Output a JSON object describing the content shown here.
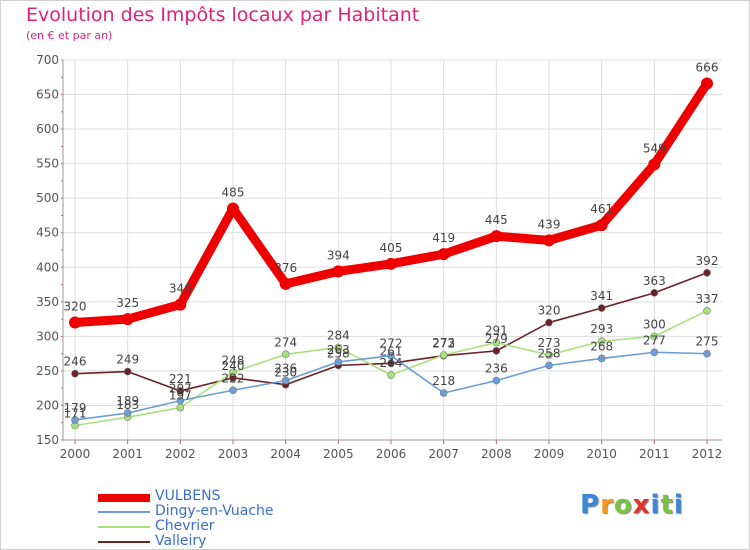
{
  "chart_data": {
    "type": "line",
    "title": "Evolution des Impôts locaux par Habitant",
    "subtitle": "(en € et par an)",
    "xlabel": "",
    "ylabel": "",
    "categories": [
      "2000",
      "2001",
      "2002",
      "2003",
      "2004",
      "2005",
      "2006",
      "2007",
      "2008",
      "2009",
      "2010",
      "2011",
      "2012"
    ],
    "yticks": [
      "150",
      "200",
      "250",
      "300",
      "350",
      "400",
      "450",
      "500",
      "550",
      "600",
      "650",
      "700"
    ],
    "ylim": [
      150,
      700
    ],
    "grid": true,
    "legend_position": "bottom-left",
    "series": [
      {
        "name": "VULBENS",
        "color": "#ee0000",
        "values": [
          320,
          325,
          346,
          485,
          376,
          394,
          405,
          419,
          445,
          439,
          461,
          549,
          666
        ],
        "labels": [
          "320",
          "325",
          "346",
          "485",
          "376",
          "394",
          "405",
          "419",
          "445",
          "439",
          "461",
          "549",
          "666"
        ]
      },
      {
        "name": "Dingy-en-Vuache",
        "color": "#6b9ed6",
        "values": [
          179,
          189,
          207,
          222,
          236,
          263,
          272,
          218,
          236,
          258,
          268,
          277,
          275
        ],
        "labels": [
          "179",
          "189",
          "207",
          "222",
          "236",
          "263",
          "272",
          "218",
          "236",
          "258",
          "268",
          "277",
          "275"
        ]
      },
      {
        "name": "Chevrier",
        "color": "#a8e27d",
        "values": [
          171,
          183,
          197,
          248,
          274,
          284,
          244,
          273,
          291,
          273,
          293,
          300,
          337
        ],
        "labels": [
          "171",
          "183",
          "197",
          "248",
          "274",
          "284",
          "244",
          "273",
          "291",
          "273",
          "293",
          "300",
          "337"
        ]
      },
      {
        "name": "Valleiry",
        "color": "#6b2127",
        "values": [
          246,
          249,
          221,
          240,
          230,
          258,
          261,
          272,
          279,
          320,
          341,
          363,
          392
        ],
        "labels": [
          "246",
          "249",
          "221",
          "240",
          "230",
          "258",
          "261",
          "272",
          "279",
          "320",
          "341",
          "363",
          "392"
        ]
      }
    ]
  },
  "brand": {
    "letters": [
      "P",
      "r",
      "o",
      "x",
      "i",
      "t",
      "i"
    ],
    "colors": [
      "#3b87d8",
      "#f09a1e",
      "#7cc242",
      "#e0312c",
      "#3b87d8",
      "#7cc242",
      "#3b87d8"
    ]
  }
}
